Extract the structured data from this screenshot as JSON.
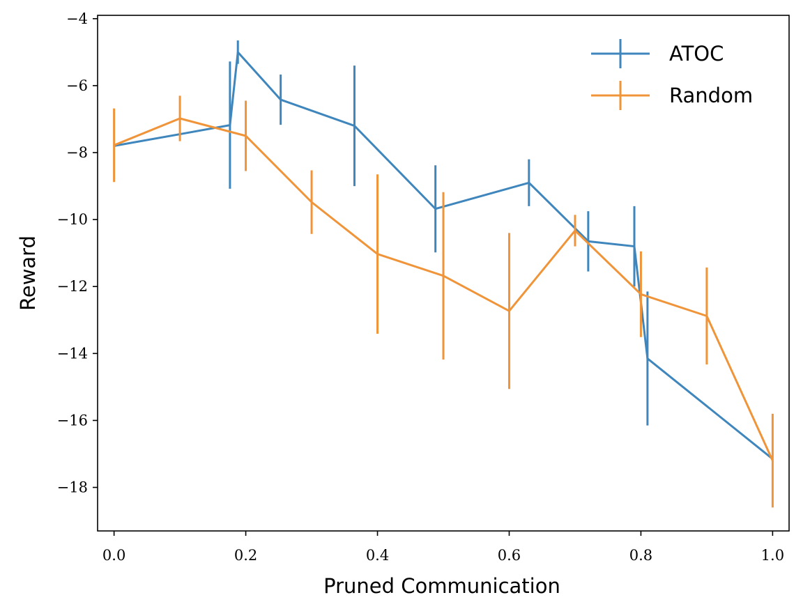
{
  "chart_data": {
    "type": "line",
    "xlabel": "Pruned Communication",
    "ylabel": "Reward",
    "xlim": [
      -0.025,
      1.025
    ],
    "ylim": [
      -19.3,
      -3.9
    ],
    "xticks": [
      0.0,
      0.2,
      0.4,
      0.6,
      0.8,
      1.0
    ],
    "xtick_labels": [
      "0.0",
      "0.2",
      "0.4",
      "0.6",
      "0.8",
      "1.0"
    ],
    "yticks": [
      -4,
      -6,
      -8,
      -10,
      -12,
      -14,
      -16,
      -18
    ],
    "ytick_labels": [
      "−4",
      "−6",
      "−8",
      "−10",
      "−12",
      "−14",
      "−16",
      "−18"
    ],
    "grid": false,
    "legend_position": "top-right",
    "error_bars": true,
    "series": [
      {
        "name": "ATOC",
        "color": "#3f86bc",
        "x": [
          0.0,
          0.1,
          0.176,
          0.188,
          0.253,
          0.365,
          0.488,
          0.63,
          0.72,
          0.79,
          0.81,
          1.0
        ],
        "y": [
          -7.8,
          -7.45,
          -7.18,
          -5.0,
          -6.42,
          -7.2,
          -9.68,
          -8.9,
          -10.65,
          -10.8,
          -14.15,
          -17.15
        ],
        "err": [
          0.0,
          0.0,
          1.9,
          0.35,
          0.75,
          1.8,
          1.3,
          0.7,
          0.9,
          1.2,
          2.0,
          0.0
        ]
      },
      {
        "name": "Random",
        "color": "#f0943a",
        "x": [
          0.0,
          0.1,
          0.2,
          0.3,
          0.4,
          0.5,
          0.6,
          0.7,
          0.8,
          0.9,
          1.0
        ],
        "y": [
          -7.78,
          -6.98,
          -7.5,
          -9.48,
          -11.03,
          -11.68,
          -12.73,
          -10.33,
          -12.23,
          -12.88,
          -17.2
        ],
        "err": [
          1.1,
          0.68,
          1.05,
          0.95,
          2.38,
          2.5,
          2.33,
          0.47,
          1.28,
          1.45,
          1.4
        ]
      }
    ]
  }
}
